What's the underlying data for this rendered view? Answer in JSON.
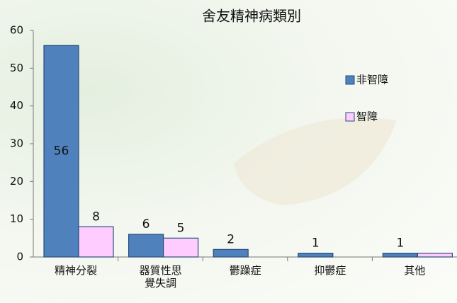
{
  "chart_data": {
    "type": "bar",
    "title": "舍友精神病類別",
    "categories": [
      "精神分裂",
      "器質性思覺失調",
      "鬱躁症",
      "抑鬱症",
      "其他"
    ],
    "series": [
      {
        "name": "非智障",
        "color": "#4f81bd",
        "values": [
          56,
          6,
          2,
          1,
          1
        ],
        "value_labels": [
          56,
          6,
          2,
          1,
          1
        ]
      },
      {
        "name": "智障",
        "color": "#ffccff",
        "values": [
          8,
          5,
          0,
          0,
          1
        ],
        "value_labels": [
          8,
          5,
          null,
          null,
          null
        ]
      }
    ],
    "ylim": [
      0,
      60
    ],
    "yticks": [
      0,
      10,
      20,
      30,
      40,
      50,
      60
    ],
    "grid": false,
    "legend": "right"
  }
}
